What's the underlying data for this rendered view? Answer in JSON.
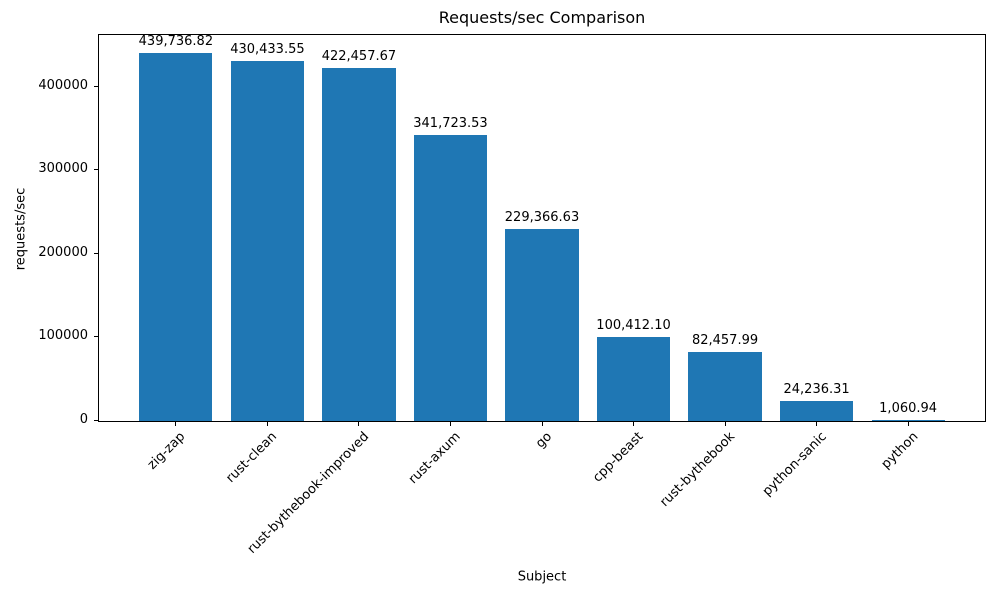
{
  "chart_data": {
    "type": "bar",
    "title": "Requests/sec Comparison",
    "xlabel": "Subject",
    "ylabel": "requests/sec",
    "categories": [
      "zig-zap",
      "rust-clean",
      "rust-bythebook-improved",
      "rust-axum",
      "go",
      "cpp-beast",
      "rust-bythebook",
      "python-sanic",
      "python"
    ],
    "values": [
      439736.82,
      430433.55,
      422457.67,
      341723.53,
      229366.63,
      100412.1,
      82457.99,
      24236.31,
      1060.94
    ],
    "value_labels": [
      "439,736.82",
      "430,433.55",
      "422,457.67",
      "341,723.53",
      "229,366.63",
      "100,412.10",
      "82,457.99",
      "24,236.31",
      "1,060.94"
    ],
    "yticks": [
      0,
      100000,
      200000,
      300000,
      400000
    ],
    "ytick_labels": [
      "0",
      "100000",
      "200000",
      "300000",
      "400000"
    ],
    "ylim": [
      0,
      461723.66
    ],
    "x_tick_rotation_deg": 45,
    "bar_width_ratio": 0.8,
    "bar_color": "#1f77b4",
    "text_color": "#000000",
    "grid": false,
    "legend": null
  }
}
